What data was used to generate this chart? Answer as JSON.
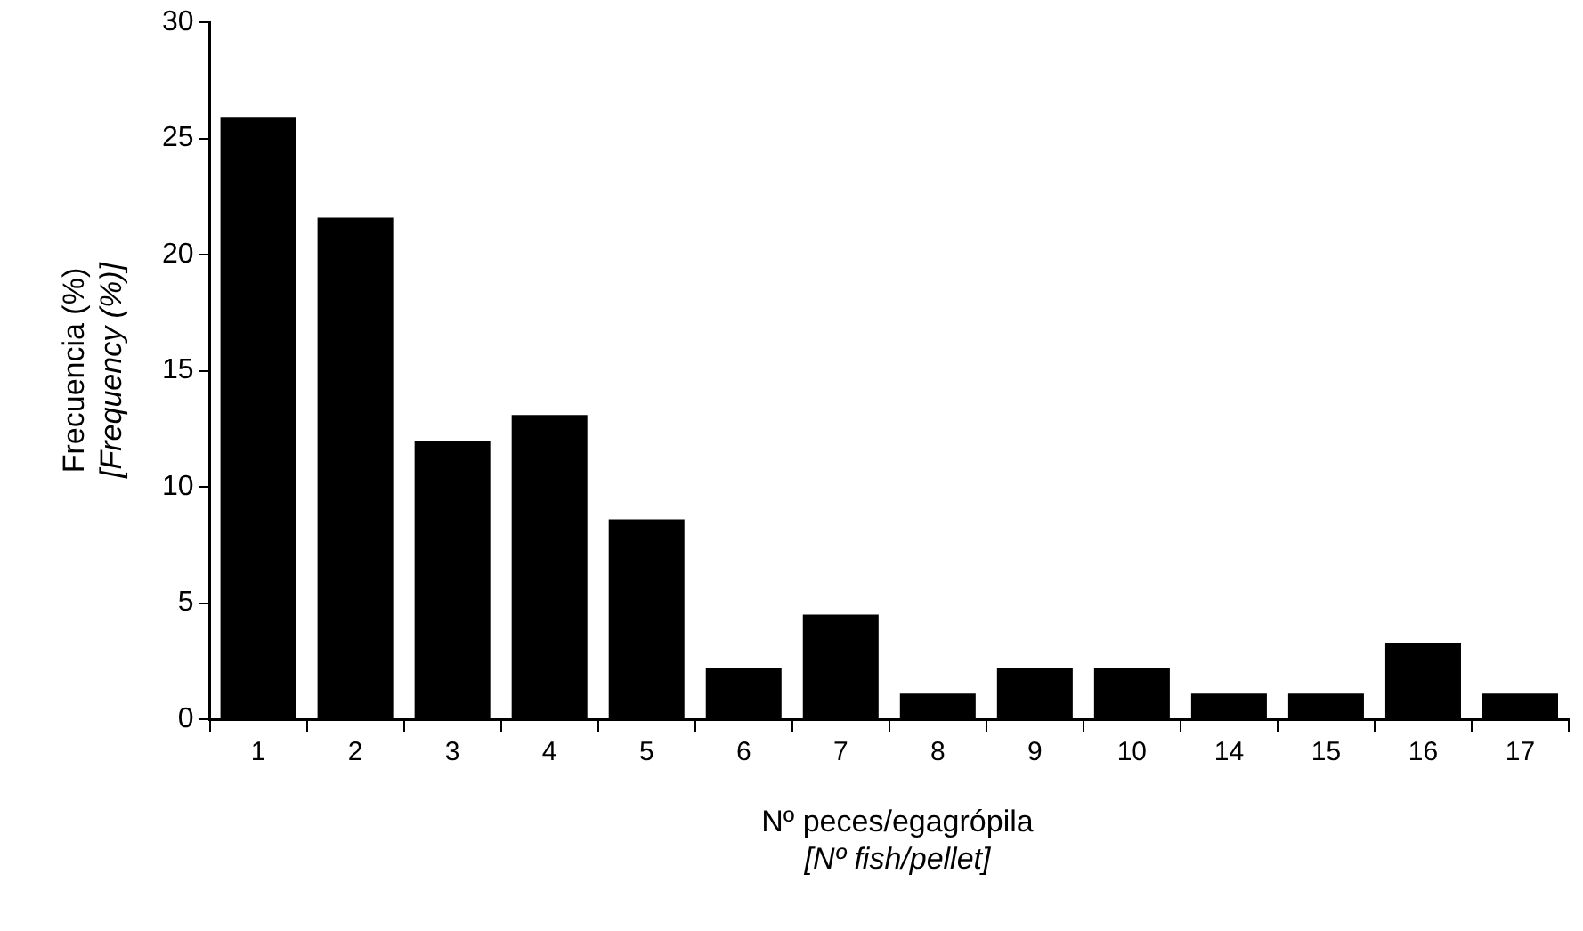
{
  "chart_data": {
    "type": "bar",
    "xlabel": "Nº peces/egagrópila\n[Nº fish/pellet]",
    "ylabel": "Frecuencia (%)\n[Frequency (%)]",
    "categories": [
      "1",
      "2",
      "3",
      "4",
      "5",
      "6",
      "7",
      "8",
      "9",
      "10",
      "14",
      "15",
      "16",
      "17"
    ],
    "values": [
      25.9,
      21.6,
      12.0,
      13.1,
      8.6,
      2.2,
      4.5,
      1.1,
      2.2,
      2.2,
      1.1,
      1.1,
      3.3,
      1.1
    ],
    "color": "#000000",
    "ylim": [
      0,
      30
    ],
    "yticks": [
      0,
      5,
      10,
      15,
      20,
      25,
      30
    ],
    "grid": false,
    "legend": false
  }
}
